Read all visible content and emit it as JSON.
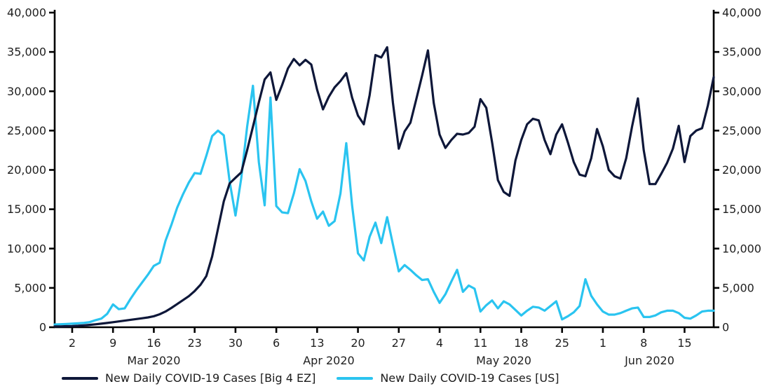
{
  "chart_data": {
    "type": "line",
    "title": "",
    "x_start_date": "2020-02-28",
    "x_end_date": "2020-06-20",
    "x_frequency": "daily",
    "ylim": [
      0,
      40000
    ],
    "ytick_step": 5000,
    "ytick_labels": [
      "0",
      "5,000",
      "10,000",
      "15,000",
      "20,000",
      "25,000",
      "30,000",
      "35,000",
      "40,000"
    ],
    "axes": {
      "left_axis": true,
      "right_axis": true,
      "grid": false,
      "dual_scale_same_values": true
    },
    "legend_position": "bottom",
    "xticks": [
      {
        "label": "2",
        "day": 3
      },
      {
        "label": "9",
        "day": 10
      },
      {
        "label": "16",
        "day": 17
      },
      {
        "label": "23",
        "day": 24
      },
      {
        "label": "30",
        "day": 31
      },
      {
        "label": "6",
        "day": 38
      },
      {
        "label": "13",
        "day": 45
      },
      {
        "label": "20",
        "day": 52
      },
      {
        "label": "27",
        "day": 59
      },
      {
        "label": "4",
        "day": 66
      },
      {
        "label": "11",
        "day": 73
      },
      {
        "label": "18",
        "day": 80
      },
      {
        "label": "25",
        "day": 87
      },
      {
        "label": "1",
        "day": 94
      },
      {
        "label": "8",
        "day": 101
      },
      {
        "label": "15",
        "day": 108
      }
    ],
    "month_labels": [
      {
        "label": "Mar 2020",
        "day": 17
      },
      {
        "label": "Apr 2020",
        "day": 47
      },
      {
        "label": "May 2020",
        "day": 77
      },
      {
        "label": "Jun 2020",
        "day": 102
      }
    ],
    "series": [
      {
        "name": "New Daily COVID-19 Cases [Big 4 EZ]",
        "color": "#0E1739",
        "values": [
          100,
          110,
          130,
          150,
          190,
          240,
          300,
          370,
          450,
          540,
          640,
          740,
          840,
          940,
          1040,
          1140,
          1250,
          1400,
          1650,
          2000,
          2450,
          2950,
          3450,
          3950,
          4600,
          5400,
          6500,
          9000,
          12500,
          16000,
          18300,
          19000,
          19700,
          22500,
          25500,
          28600,
          31500,
          32400,
          28900,
          30800,
          32900,
          34100,
          33300,
          34000,
          33400,
          30200,
          27700,
          29300,
          30500,
          31300,
          32300,
          29200,
          26900,
          25800,
          29500,
          34600,
          34300,
          35600,
          28500,
          22700,
          24900,
          26000,
          29000,
          32000,
          35200,
          28500,
          24500,
          22800,
          23800,
          24600,
          24500,
          24700,
          25500,
          29000,
          27900,
          23500,
          18700,
          17200,
          16700,
          21200,
          23800,
          25800,
          26500,
          26300,
          23800,
          22000,
          24500,
          25800,
          23500,
          21000,
          19400,
          19200,
          21500,
          25200,
          23000,
          20000,
          19200,
          18900,
          21500,
          25500,
          29100,
          22500,
          18200,
          18200,
          19500,
          20900,
          22700,
          25600,
          21000,
          24300,
          25000,
          25300,
          28200,
          31800
        ]
      },
      {
        "name": "New Daily COVID-19 Cases [US]",
        "color": "#2AC4F0",
        "values": [
          350,
          380,
          420,
          450,
          500,
          550,
          650,
          900,
          1100,
          1700,
          2900,
          2300,
          2400,
          3600,
          4700,
          5700,
          6700,
          7800,
          8200,
          11000,
          13000,
          15200,
          16900,
          18400,
          19600,
          19500,
          21800,
          24300,
          25000,
          24400,
          18500,
          14200,
          19000,
          25500,
          30700,
          21000,
          15500,
          29200,
          15400,
          14600,
          14500,
          17000,
          20100,
          18600,
          16000,
          13800,
          14700,
          12900,
          13500,
          17000,
          23400,
          15500,
          9400,
          8500,
          11500,
          13300,
          10700,
          14000,
          10500,
          7100,
          7900,
          7300,
          6600,
          6000,
          6100,
          4500,
          3100,
          4200,
          5800,
          7300,
          4500,
          5300,
          4900,
          2000,
          2800,
          3400,
          2400,
          3300,
          2900,
          2200,
          1500,
          2100,
          2600,
          2500,
          2100,
          2700,
          3300,
          1000,
          1400,
          1900,
          2700,
          6100,
          4000,
          2900,
          2000,
          1600,
          1600,
          1800,
          2100,
          2400,
          2500,
          1300,
          1300,
          1500,
          1900,
          2100,
          2100,
          1800,
          1200,
          1100,
          1500,
          2000,
          2100,
          2100
        ]
      }
    ]
  }
}
